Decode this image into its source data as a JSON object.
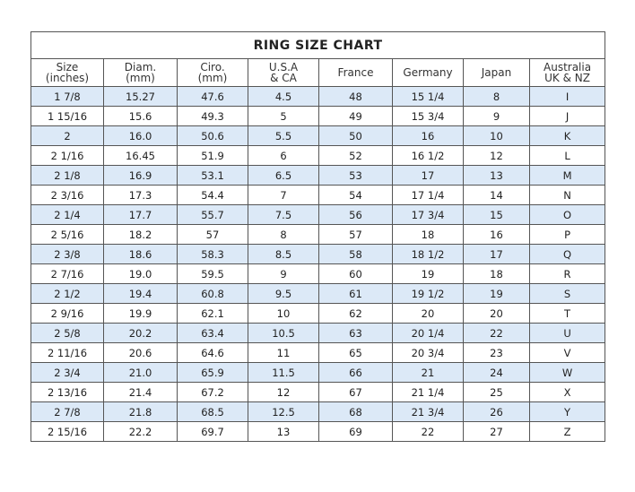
{
  "title": "RING SIZE CHART",
  "columns": [
    [
      "Size",
      "(inches)"
    ],
    [
      "Diam.",
      "(mm)"
    ],
    [
      "Ciro.",
      "(mm)"
    ],
    [
      "U.S.A",
      "& CA"
    ],
    [
      "France",
      ""
    ],
    [
      "Germany",
      ""
    ],
    [
      "Japan",
      ""
    ],
    [
      "Australia",
      "UK & NZ"
    ]
  ],
  "row_highlight_color": "#dce9f7",
  "rows": [
    [
      "1 7/8",
      "15.27",
      "47.6",
      "4.5",
      "48",
      "15 1/4",
      "8",
      "I"
    ],
    [
      "1 15/16",
      "15.6",
      "49.3",
      "5",
      "49",
      "15 3/4",
      "9",
      "J"
    ],
    [
      "2",
      "16.0",
      "50.6",
      "5.5",
      "50",
      "16",
      "10",
      "K"
    ],
    [
      "2 1/16",
      "16.45",
      "51.9",
      "6",
      "52",
      "16 1/2",
      "12",
      "L"
    ],
    [
      "2 1/8",
      "16.9",
      "53.1",
      "6.5",
      "53",
      "17",
      "13",
      "M"
    ],
    [
      "2 3/16",
      "17.3",
      "54.4",
      "7",
      "54",
      "17 1/4",
      "14",
      "N"
    ],
    [
      "2 1/4",
      "17.7",
      "55.7",
      "7.5",
      "56",
      "17 3/4",
      "15",
      "O"
    ],
    [
      "2 5/16",
      "18.2",
      "57",
      "8",
      "57",
      "18",
      "16",
      "P"
    ],
    [
      "2 3/8",
      "18.6",
      "58.3",
      "8.5",
      "58",
      "18 1/2",
      "17",
      "Q"
    ],
    [
      "2 7/16",
      "19.0",
      "59.5",
      "9",
      "60",
      "19",
      "18",
      "R"
    ],
    [
      "2 1/2",
      "19.4",
      "60.8",
      "9.5",
      "61",
      "19 1/2",
      "19",
      "S"
    ],
    [
      "2 9/16",
      "19.9",
      "62.1",
      "10",
      "62",
      "20",
      "20",
      "T"
    ],
    [
      "2 5/8",
      "20.2",
      "63.4",
      "10.5",
      "63",
      "20 1/4",
      "22",
      "U"
    ],
    [
      "2 11/16",
      "20.6",
      "64.6",
      "11",
      "65",
      "20 3/4",
      "23",
      "V"
    ],
    [
      "2 3/4",
      "21.0",
      "65.9",
      "11.5",
      "66",
      "21",
      "24",
      "W"
    ],
    [
      "2 13/16",
      "21.4",
      "67.2",
      "12",
      "67",
      "21 1/4",
      "25",
      "X"
    ],
    [
      "2 7/8",
      "21.8",
      "68.5",
      "12.5",
      "68",
      "21 3/4",
      "26",
      "Y"
    ],
    [
      "2 15/16",
      "22.2",
      "69.7",
      "13",
      "69",
      "22",
      "27",
      "Z"
    ]
  ]
}
